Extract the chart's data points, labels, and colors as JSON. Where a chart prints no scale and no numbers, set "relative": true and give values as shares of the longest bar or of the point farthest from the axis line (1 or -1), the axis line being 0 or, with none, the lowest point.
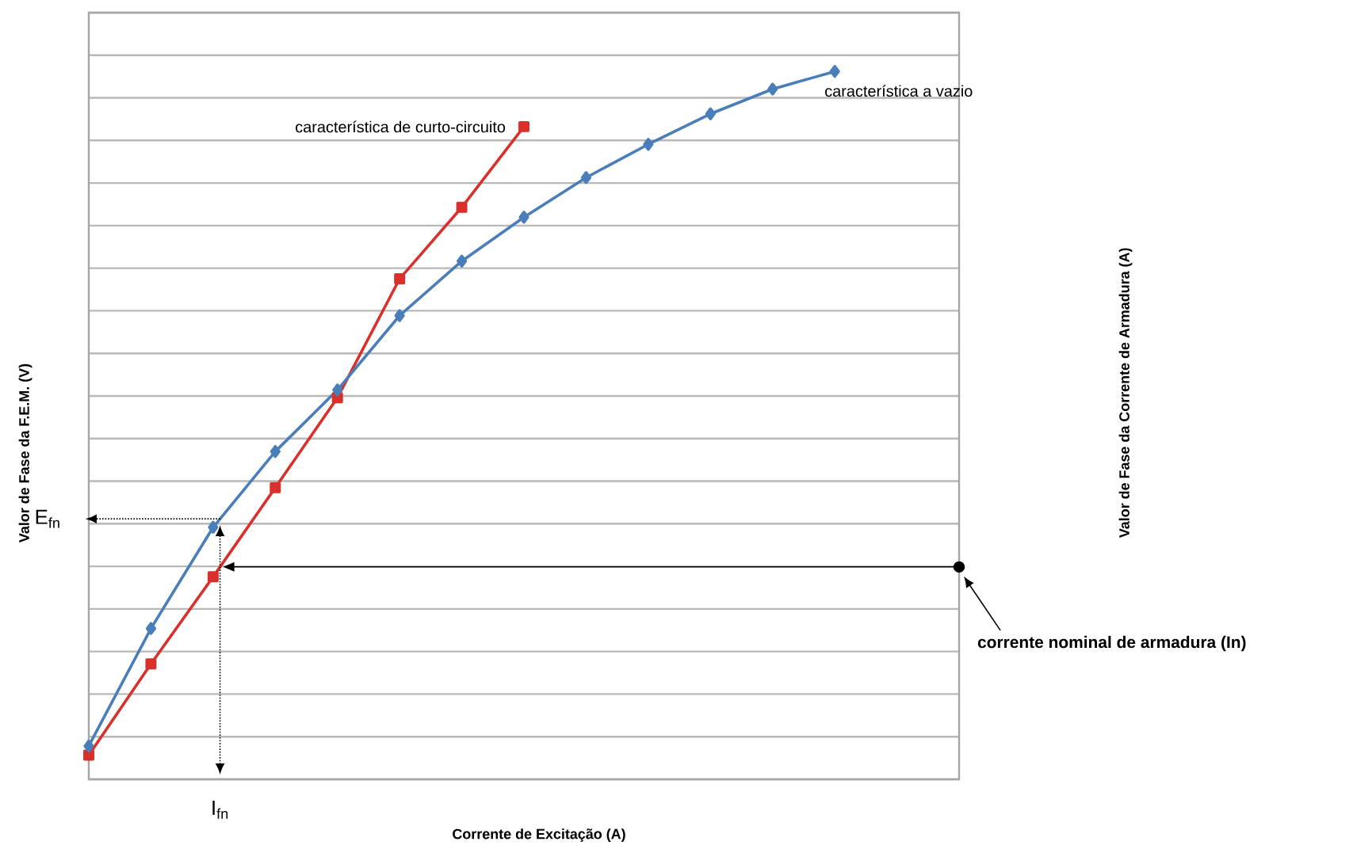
{
  "chart_data": {
    "type": "line",
    "relative": true,
    "grid": "y",
    "xlabel": "Corrente de Excitação  (A)",
    "ylabel": "Valor de Fase da F.E.M. (V)",
    "categories": [
      null,
      null,
      null,
      null,
      null,
      null,
      null,
      null,
      null,
      null,
      null,
      null,
      null
    ],
    "series": [
      {
        "name": "característica de curto-circuito",
        "color": "#d9302c",
        "marker": "square",
        "values": [
          0.034,
          0.163,
          0.286,
          0.412,
          0.539,
          0.707,
          0.808,
          0.922,
          null,
          null,
          null,
          null,
          null
        ]
      },
      {
        "name": "característica a vazio",
        "color": "#4a7ebb",
        "marker": "diamond",
        "values": [
          0.047,
          0.213,
          0.356,
          0.463,
          0.55,
          0.655,
          0.732,
          0.794,
          0.85,
          0.897,
          0.94,
          0.975,
          1.0
        ]
      }
    ],
    "annotations": [
      "E$_{fn}$",
      "I$_{fn}$",
      "corrente nominal de armadura  (In)",
      "Valor de Fase da  Corrente de Armadura (A)"
    ],
    "ref_lines": [
      {
        "axis": "y",
        "value": 0.3,
        "color": "#000000"
      }
    ]
  }
}
